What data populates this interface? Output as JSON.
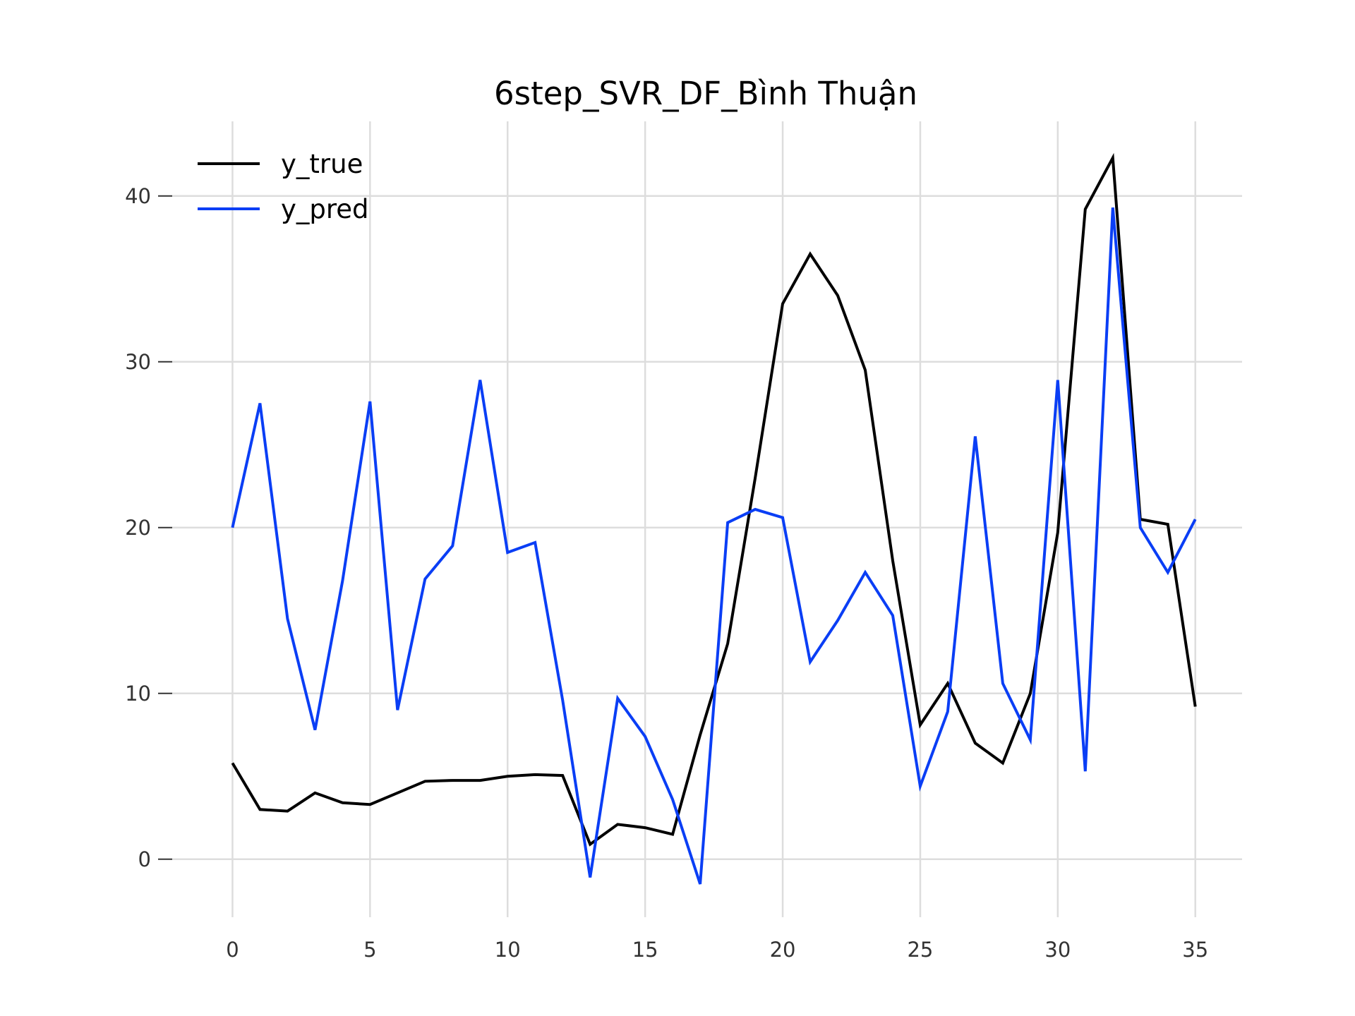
{
  "chart_data": {
    "type": "line",
    "title": "6step_SVR_DF_Bình Thuận",
    "xlabel": "",
    "ylabel": "",
    "x": [
      0,
      1,
      2,
      3,
      4,
      5,
      6,
      7,
      8,
      9,
      10,
      11,
      12,
      13,
      14,
      15,
      16,
      17,
      18,
      19,
      20,
      21,
      22,
      23,
      24,
      25,
      26,
      27,
      28,
      29,
      30,
      31,
      32,
      33,
      34,
      35
    ],
    "xlim": [
      -2.5,
      36.7
    ],
    "ylim": [
      -3.5,
      44.5
    ],
    "xticks": [
      0,
      5,
      10,
      15,
      20,
      25,
      30,
      35
    ],
    "yticks": [
      0,
      10,
      20,
      30,
      40
    ],
    "grid": true,
    "legend_position": "top-left",
    "series": [
      {
        "name": "y_true",
        "color": "#000000",
        "values": [
          5.8,
          3.0,
          2.9,
          4.0,
          3.4,
          3.3,
          4.0,
          4.7,
          4.75,
          4.75,
          5.0,
          5.1,
          5.05,
          0.9,
          2.1,
          1.9,
          1.5,
          7.5,
          13.0,
          23.0,
          33.5,
          36.5,
          34.0,
          29.5,
          18.0,
          8.1,
          10.6,
          7.0,
          5.8,
          10.0,
          19.7,
          39.2,
          42.3,
          20.5,
          20.2,
          9.2
        ]
      },
      {
        "name": "y_pred",
        "color": "#0a3ef5",
        "values": [
          20.0,
          27.5,
          14.5,
          7.8,
          16.8,
          27.6,
          9.0,
          16.9,
          18.9,
          28.9,
          18.5,
          19.1,
          9.6,
          -1.1,
          9.7,
          7.4,
          3.6,
          -1.5,
          20.3,
          21.1,
          20.6,
          11.9,
          14.4,
          17.3,
          14.7,
          4.4,
          8.9,
          25.5,
          10.6,
          7.2,
          28.9,
          5.3,
          39.3,
          20.0,
          17.3,
          20.5
        ]
      }
    ]
  }
}
